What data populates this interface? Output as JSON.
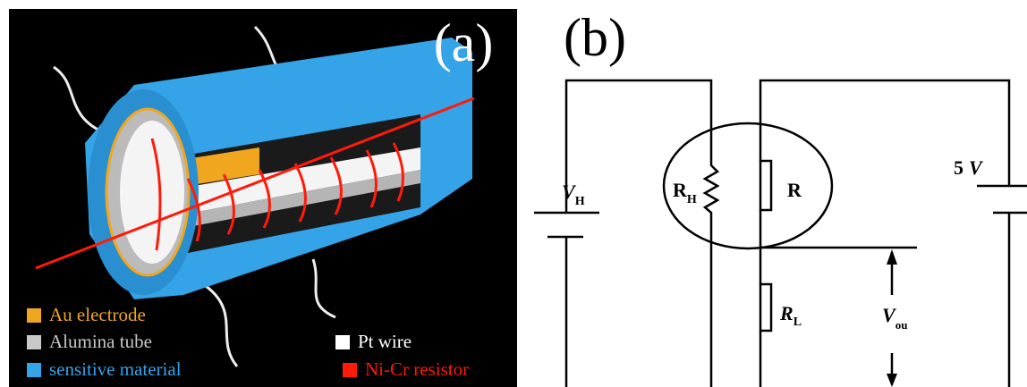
{
  "panel_a": {
    "label": "(a)",
    "legend": [
      {
        "text": "Au electrode",
        "color": "#f0a61e"
      },
      {
        "text": "Alumina tube",
        "color": "#c8c8c8"
      },
      {
        "text": "sensitive material",
        "color": "#35a3e8"
      },
      {
        "text": "Pt wire",
        "color": "#ffffff"
      },
      {
        "text": "Ni-Cr resistor",
        "color": "#ff1a0a"
      }
    ]
  },
  "panel_b": {
    "label": "(b)",
    "heater_voltage": {
      "symbol": "V",
      "subscript": "H"
    },
    "heater_resistor": {
      "symbol": "R",
      "subscript": "H"
    },
    "sensor_resistor": "R",
    "supply": {
      "value": "5",
      "unit": "V"
    },
    "load_resistor": {
      "symbol": "R",
      "subscript": "L"
    },
    "output": {
      "symbol": "V",
      "subscript": "ou"
    }
  }
}
